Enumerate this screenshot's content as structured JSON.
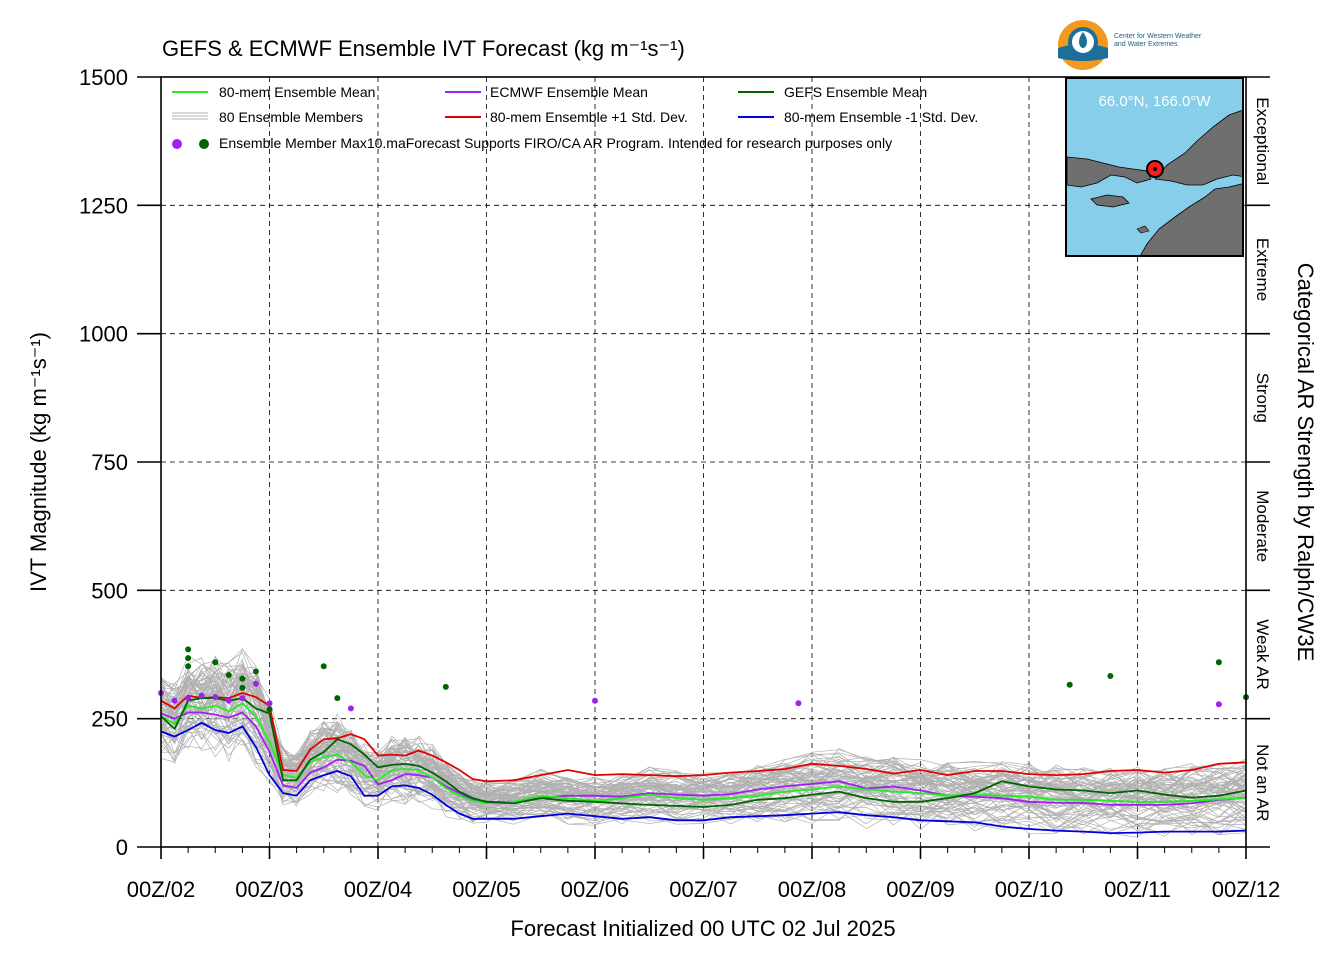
{
  "title": "GEFS & ECMWF Ensemble IVT Forecast (kg m⁻¹s⁻¹)",
  "logo": {
    "line1": "Center for Western Weather",
    "line2": "and Water Extremes"
  },
  "inset": {
    "location_label": "66.0°N, 166.0°W"
  },
  "colors": {
    "mean80": "#22ee22",
    "ecmwf": "#a020f0",
    "gefs": "#006400",
    "plus_sd": "#e00000",
    "minus_sd": "#0000dd",
    "members": "#b0b0b0",
    "map_bg": "#87ceeb"
  },
  "legend": {
    "mean80": "80-mem Ensemble Mean",
    "members": "80 Ensemble Members",
    "max": "Ensemble Member Max",
    "ecmwf": "ECMWF Ensemble Mean",
    "plus_sd": "80-mem Ensemble +1 Std. Dev.",
    "gefs": "GEFS Ensemble Mean",
    "minus_sd": "80-mem Ensemble -1 Std. Dev.",
    "note": "10.maForecast Supports FIRO/CA AR Program. Intended for research purposes only"
  },
  "chart_data": {
    "type": "line",
    "title": "GEFS & ECMWF Ensemble IVT Forecast (kg m⁻¹s⁻¹)",
    "xlabel": "Forecast Initialized 00 UTC 02 Jul 2025",
    "ylabel": "IVT Magnitude (kg m⁻¹s⁻¹)",
    "right_label": "Categorical AR Strength by Ralph/CW3E",
    "xlim": [
      0,
      240
    ],
    "ylim": [
      0,
      1500
    ],
    "x_ticks": [
      0,
      24,
      48,
      72,
      96,
      120,
      144,
      168,
      192,
      216,
      240
    ],
    "x_tick_labels": [
      "00Z/02",
      "00Z/03",
      "00Z/04",
      "00Z/05",
      "00Z/06",
      "00Z/07",
      "00Z/08",
      "00Z/09",
      "00Z/10",
      "00Z/11",
      "00Z/12"
    ],
    "y_ticks": [
      0,
      250,
      500,
      750,
      1000,
      1250,
      1500
    ],
    "categories": [
      {
        "label": "Not an AR",
        "range": [
          0,
          250
        ]
      },
      {
        "label": "Weak AR",
        "range": [
          250,
          500
        ]
      },
      {
        "label": "Moderate",
        "range": [
          500,
          750
        ]
      },
      {
        "label": "Strong",
        "range": [
          750,
          1000
        ]
      },
      {
        "label": "Extreme",
        "range": [
          1000,
          1250
        ]
      },
      {
        "label": "Exceptional",
        "range": [
          1250,
          1500
        ]
      }
    ],
    "grid": true,
    "legend_position": "top-left",
    "series": [
      {
        "name": "80-mem Ensemble Mean",
        "color": "#22ee22",
        "x": [
          0,
          3,
          6,
          9,
          12,
          15,
          18,
          21,
          24,
          27,
          30,
          33,
          36,
          39,
          42,
          45,
          48,
          51,
          54,
          57,
          60,
          63,
          66,
          69,
          72,
          78,
          84,
          90,
          96,
          102,
          108,
          114,
          120,
          126,
          132,
          138,
          144,
          150,
          156,
          162,
          168,
          174,
          180,
          186,
          192,
          198,
          204,
          210,
          216,
          222,
          228,
          234,
          240
        ],
        "values": [
          255,
          240,
          275,
          270,
          275,
          265,
          280,
          255,
          205,
          140,
          135,
          165,
          175,
          180,
          165,
          140,
          130,
          150,
          152,
          150,
          135,
          115,
          100,
          90,
          85,
          88,
          100,
          95,
          90,
          95,
          102,
          95,
          92,
          95,
          100,
          108,
          112,
          118,
          112,
          108,
          105,
          100,
          102,
          100,
          98,
          92,
          92,
          90,
          88,
          88,
          90,
          93,
          96
        ]
      },
      {
        "name": "ECMWF Ensemble Mean",
        "color": "#a020f0",
        "x": [
          0,
          3,
          6,
          9,
          12,
          15,
          18,
          21,
          24,
          27,
          30,
          33,
          36,
          39,
          42,
          45,
          48,
          51,
          54,
          57,
          60,
          63,
          66,
          69,
          72,
          78,
          84,
          90,
          96,
          102,
          108,
          114,
          120,
          126,
          132,
          138,
          144,
          150,
          156,
          162,
          168,
          174,
          180,
          186,
          192,
          198,
          204,
          210,
          216,
          222,
          228,
          234,
          240
        ],
        "values": [
          260,
          250,
          262,
          262,
          258,
          252,
          262,
          235,
          185,
          120,
          115,
          145,
          155,
          170,
          168,
          158,
          122,
          130,
          142,
          140,
          135,
          118,
          105,
          92,
          88,
          88,
          95,
          100,
          100,
          98,
          105,
          102,
          100,
          103,
          112,
          118,
          123,
          128,
          114,
          118,
          110,
          100,
          98,
          95,
          88,
          86,
          86,
          82,
          82,
          82,
          85,
          92,
          96
        ]
      },
      {
        "name": "GEFS Ensemble Mean",
        "color": "#006400",
        "x": [
          0,
          3,
          6,
          9,
          12,
          15,
          18,
          21,
          24,
          27,
          30,
          33,
          36,
          39,
          42,
          45,
          48,
          51,
          54,
          57,
          60,
          63,
          66,
          69,
          72,
          78,
          84,
          90,
          96,
          102,
          108,
          114,
          120,
          126,
          132,
          138,
          144,
          150,
          156,
          162,
          168,
          174,
          180,
          186,
          192,
          198,
          204,
          210,
          216,
          222,
          228,
          234,
          240
        ],
        "values": [
          255,
          230,
          285,
          290,
          290,
          285,
          290,
          270,
          260,
          130,
          130,
          170,
          185,
          210,
          200,
          180,
          155,
          160,
          162,
          158,
          145,
          128,
          108,
          95,
          88,
          85,
          95,
          90,
          88,
          85,
          82,
          80,
          78,
          82,
          92,
          95,
          102,
          108,
          95,
          88,
          88,
          95,
          105,
          128,
          118,
          112,
          110,
          105,
          110,
          102,
          96,
          100,
          110
        ]
      },
      {
        "name": "80-mem Ensemble +1 Std. Dev.",
        "color": "#e00000",
        "x": [
          0,
          3,
          6,
          9,
          12,
          15,
          18,
          21,
          24,
          27,
          30,
          33,
          36,
          39,
          42,
          45,
          48,
          51,
          54,
          57,
          60,
          63,
          66,
          69,
          72,
          78,
          84,
          90,
          96,
          102,
          108,
          114,
          120,
          126,
          132,
          138,
          144,
          150,
          156,
          162,
          168,
          174,
          180,
          186,
          192,
          198,
          204,
          210,
          216,
          222,
          228,
          234,
          240
        ],
        "values": [
          285,
          270,
          295,
          290,
          292,
          290,
          300,
          292,
          275,
          150,
          148,
          190,
          210,
          212,
          220,
          210,
          178,
          180,
          178,
          188,
          178,
          165,
          150,
          132,
          128,
          130,
          140,
          150,
          140,
          142,
          140,
          138,
          140,
          145,
          148,
          152,
          162,
          158,
          152,
          143,
          150,
          140,
          148,
          148,
          142,
          140,
          142,
          148,
          150,
          145,
          150,
          162,
          165
        ]
      },
      {
        "name": "80-mem Ensemble -1 Std. Dev.",
        "color": "#0000dd",
        "x": [
          0,
          3,
          6,
          9,
          12,
          15,
          18,
          21,
          24,
          27,
          30,
          33,
          36,
          39,
          42,
          45,
          48,
          51,
          54,
          57,
          60,
          63,
          66,
          69,
          72,
          78,
          84,
          90,
          96,
          102,
          108,
          114,
          120,
          126,
          132,
          138,
          144,
          150,
          156,
          162,
          168,
          174,
          180,
          186,
          192,
          198,
          204,
          210,
          216,
          222,
          228,
          234,
          240
        ],
        "values": [
          225,
          215,
          228,
          242,
          228,
          222,
          235,
          195,
          140,
          105,
          100,
          130,
          140,
          148,
          138,
          100,
          100,
          118,
          120,
          115,
          102,
          82,
          65,
          55,
          55,
          55,
          60,
          65,
          60,
          55,
          58,
          52,
          52,
          58,
          60,
          62,
          65,
          68,
          62,
          58,
          52,
          50,
          48,
          40,
          35,
          32,
          30,
          27,
          28,
          30,
          30,
          30,
          32
        ]
      }
    ],
    "member_count": 80,
    "max_points": {
      "ecmwf": [
        [
          0,
          300
        ],
        [
          3,
          285
        ],
        [
          6,
          290
        ],
        [
          9,
          295
        ],
        [
          12,
          292
        ],
        [
          15,
          285
        ],
        [
          18,
          290
        ],
        [
          21,
          318
        ],
        [
          24,
          280
        ],
        [
          42,
          270
        ],
        [
          96,
          285
        ],
        [
          141,
          280
        ],
        [
          234,
          278
        ]
      ],
      "gefs": [
        [
          6,
          385
        ],
        [
          6,
          368
        ],
        [
          6,
          352
        ],
        [
          12,
          360
        ],
        [
          15,
          335
        ],
        [
          18,
          328
        ],
        [
          18,
          310
        ],
        [
          21,
          342
        ],
        [
          24,
          268
        ],
        [
          36,
          352
        ],
        [
          39,
          290
        ],
        [
          63,
          312
        ],
        [
          201,
          316
        ],
        [
          210,
          333
        ],
        [
          234,
          360
        ],
        [
          240,
          292
        ]
      ]
    }
  }
}
